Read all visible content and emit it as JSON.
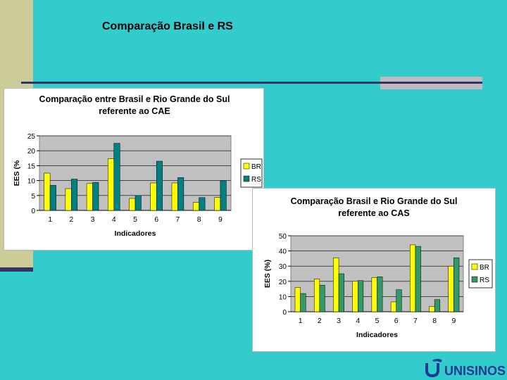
{
  "slide": {
    "title": "Comparação Brasil  e RS"
  },
  "logo": {
    "text": "UNISINOS"
  },
  "colors": {
    "background": "#33cccc",
    "sidebar": "#cccc99",
    "rule": "#333366",
    "br": "#ffff00",
    "rs_chart1": "#008080",
    "rs_chart2": "#339966",
    "plot_bg": "#c0c0c0",
    "logo": "#1f3a93"
  },
  "chart_data": [
    {
      "type": "bar",
      "title_lines": [
        "Comparação entre Brasil e Rio Grande do Sul",
        "referente ao CAE"
      ],
      "xlabel": "Indicadores",
      "ylabel": "EES (%",
      "categories": [
        "1",
        "2",
        "3",
        "4",
        "5",
        "6",
        "7",
        "8",
        "9"
      ],
      "ylim": [
        0,
        25
      ],
      "yticks": [
        0,
        5,
        10,
        15,
        20,
        25
      ],
      "grid": true,
      "legend_position": "right",
      "series": [
        {
          "name": "BR",
          "color": "#ffff00",
          "values": [
            12.5,
            7.3,
            9,
            17.3,
            4,
            9.2,
            9.2,
            2.7,
            4.3
          ]
        },
        {
          "name": "RS",
          "color": "#008080",
          "values": [
            8.4,
            10.5,
            9.4,
            22.5,
            5,
            16.5,
            11,
            4.3,
            10
          ]
        }
      ]
    },
    {
      "type": "bar",
      "title_lines": [
        "Comparação Brasil e Rio Grande do Sul",
        "referente ao CAS"
      ],
      "xlabel": "Indicadores",
      "ylabel": "EES (%)",
      "categories": [
        "1",
        "2",
        "3",
        "4",
        "5",
        "6",
        "7",
        "8",
        "9"
      ],
      "ylim": [
        0,
        50
      ],
      "yticks": [
        0,
        10,
        20,
        30,
        40,
        50
      ],
      "grid": true,
      "legend_position": "right",
      "series": [
        {
          "name": "BR",
          "color": "#ffff00",
          "values": [
            16,
            21.5,
            35.5,
            20,
            22.5,
            6.5,
            44,
            3.5,
            30
          ]
        },
        {
          "name": "RS",
          "color": "#339966",
          "values": [
            12,
            17.5,
            25,
            20.5,
            23,
            14.5,
            43,
            8,
            35.5
          ]
        }
      ]
    }
  ]
}
